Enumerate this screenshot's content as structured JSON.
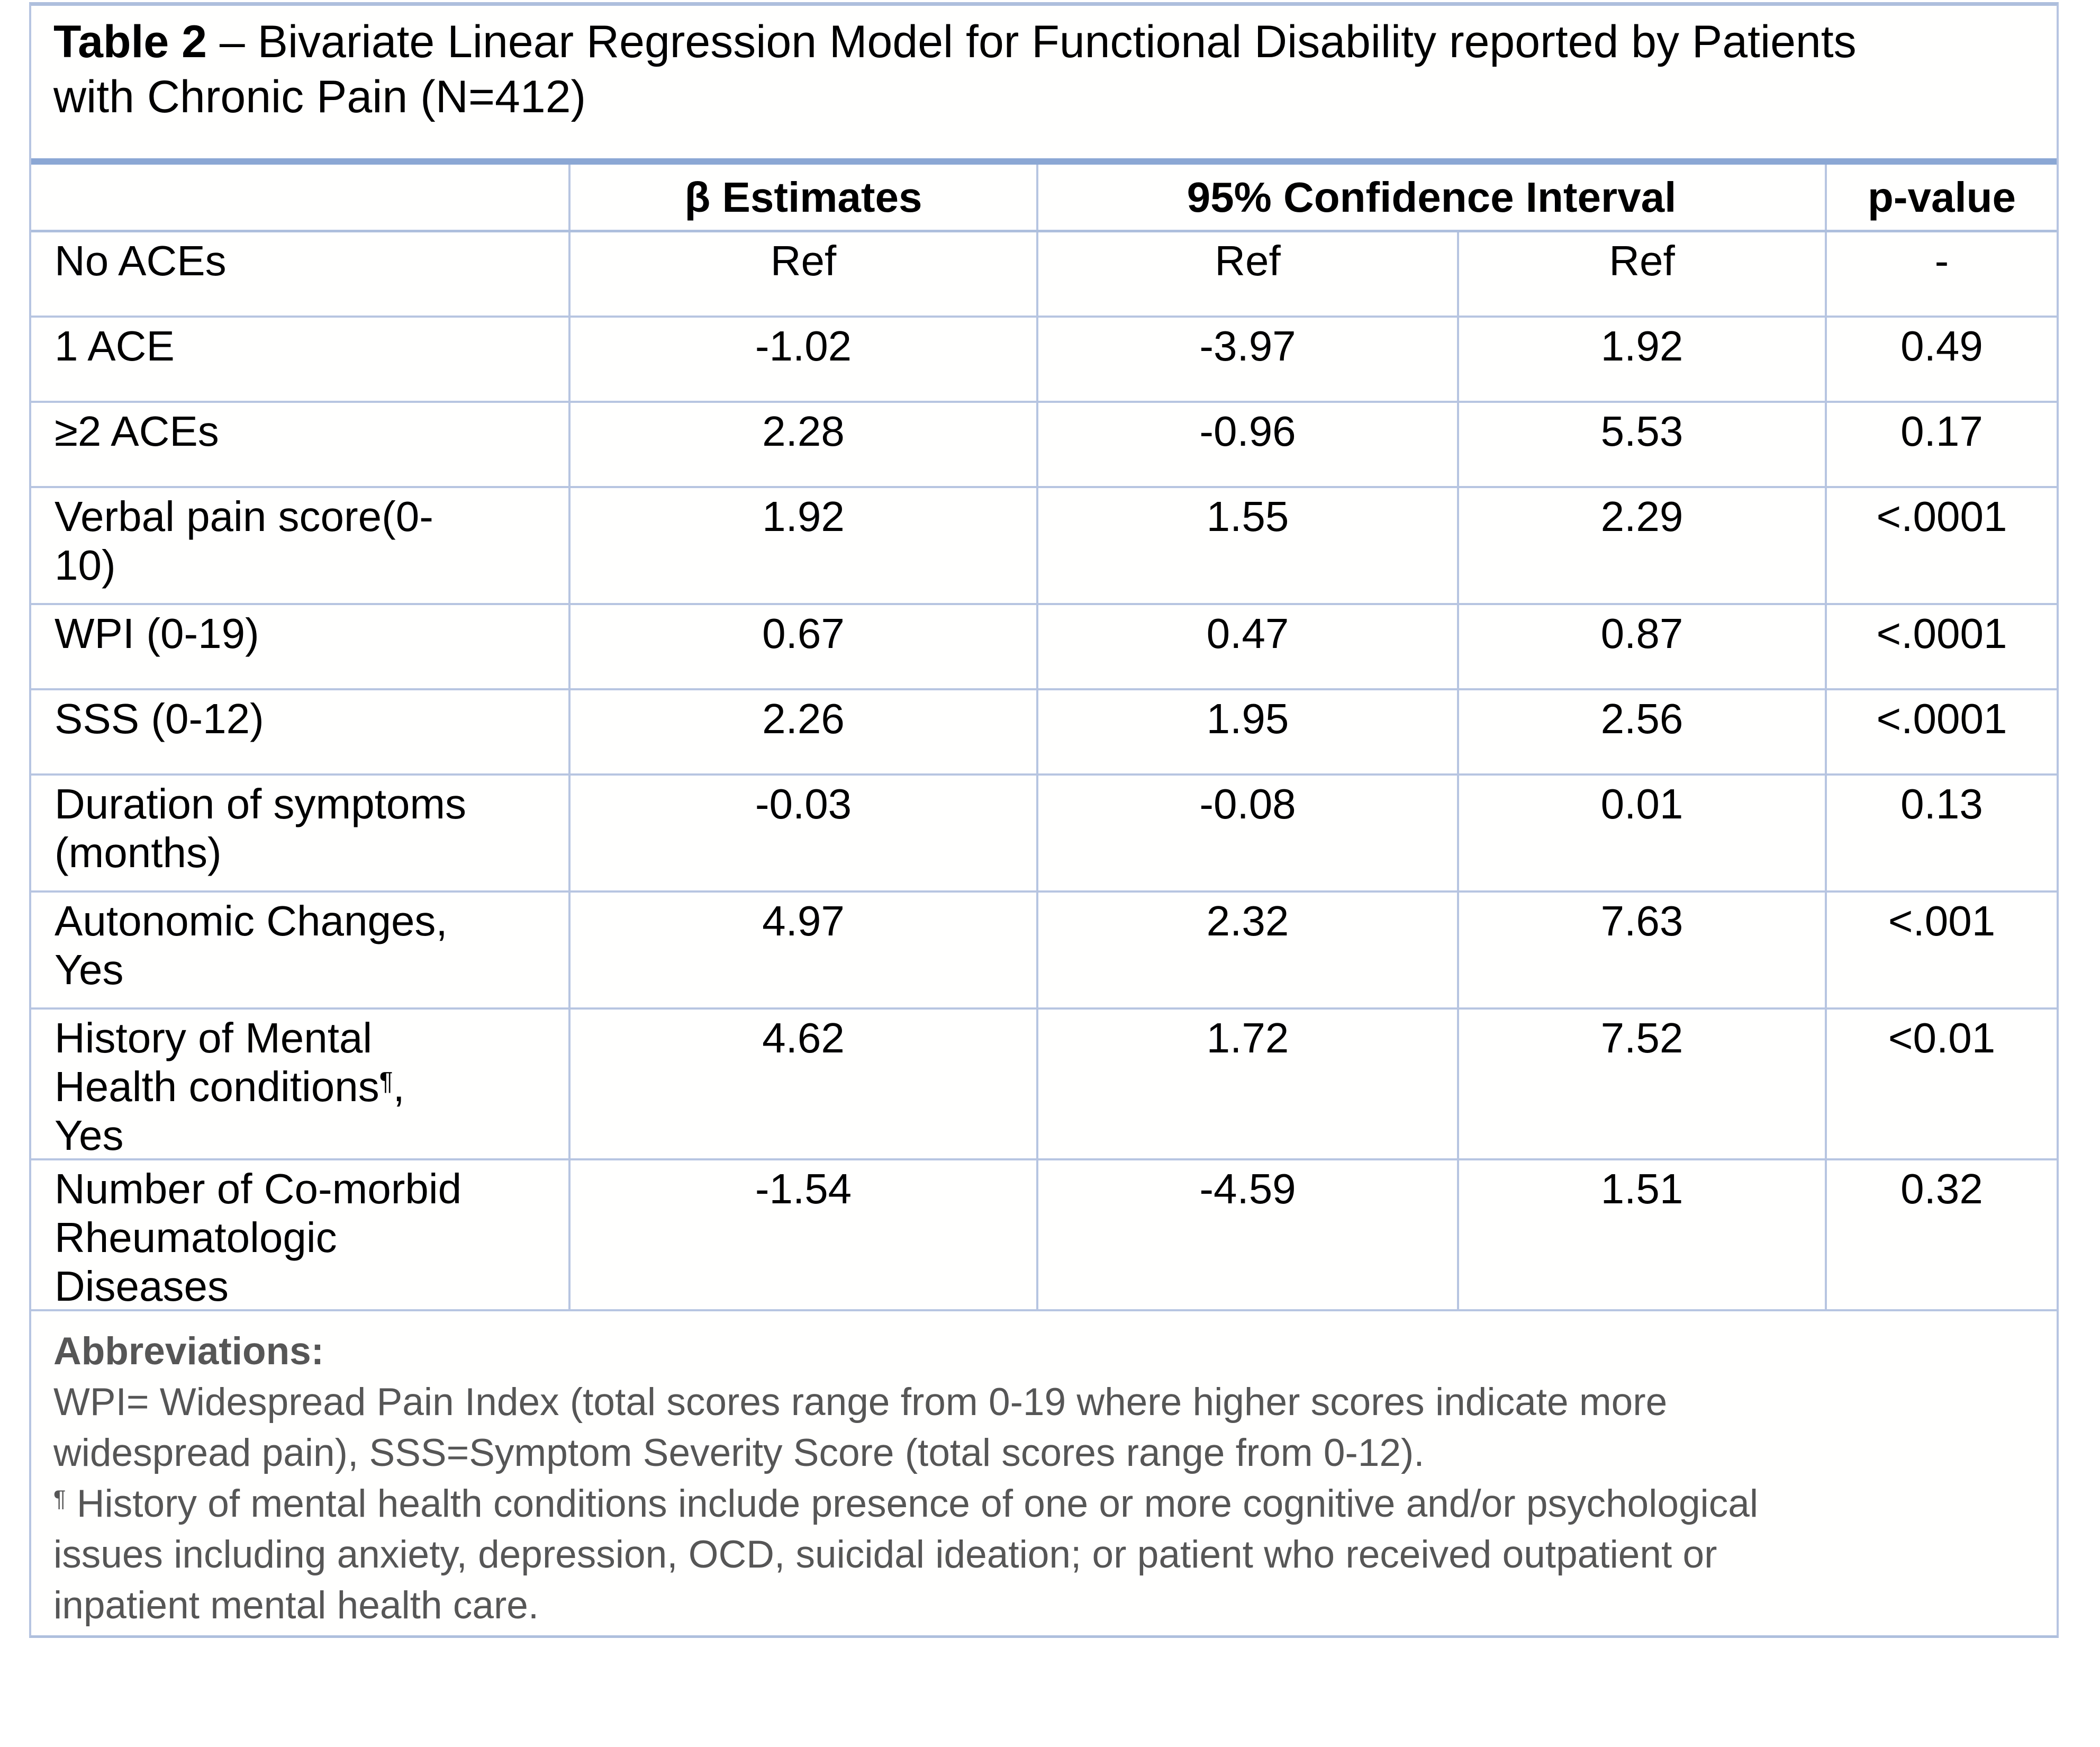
{
  "title": {
    "label": "Table 2",
    "rest": " – Bivariate Linear Regression Model for Functional Disability reported by Patients\nwith Chronic Pain (N=412)"
  },
  "table": {
    "headers": {
      "beta": "β Estimates",
      "ci": "95% Confidence Interval",
      "p": "p-value"
    },
    "rows": [
      {
        "label": "No ACEs",
        "beta": "Ref",
        "ci_low": "Ref",
        "ci_high": "Ref",
        "p": "-"
      },
      {
        "label": "1 ACE",
        "beta": "-1.02",
        "ci_low": "-3.97",
        "ci_high": "1.92",
        "p": "0.49"
      },
      {
        "label": "≥2 ACEs",
        "beta": "2.28",
        "ci_low": "-0.96",
        "ci_high": "5.53",
        "p": "0.17"
      },
      {
        "label": "Verbal pain score(0-\n10)",
        "beta": "1.92",
        "ci_low": "1.55",
        "ci_high": "2.29",
        "p": "<.0001"
      },
      {
        "label": "WPI (0-19)",
        "beta": "0.67",
        "ci_low": "0.47",
        "ci_high": "0.87",
        "p": "<.0001"
      },
      {
        "label": "SSS (0-12)",
        "beta": "2.26",
        "ci_low": "1.95",
        "ci_high": "2.56",
        "p": "<.0001"
      },
      {
        "label": "Duration of symptoms\n(months)",
        "beta": "-0.03",
        "ci_low": "-0.08",
        "ci_high": "0.01",
        "p": "0.13"
      },
      {
        "label": "Autonomic Changes,\nYes",
        "beta": "4.97",
        "ci_low": "2.32",
        "ci_high": "7.63",
        "p": "<.001"
      },
      {
        "label": "History of Mental\nHealth conditions¶,\nYes",
        "beta": "4.62",
        "ci_low": "1.72",
        "ci_high": "7.52",
        "p": "<0.01"
      },
      {
        "label": "Number of Co-morbid\nRheumatologic\nDiseases",
        "beta": "-1.54",
        "ci_low": "-4.59",
        "ci_high": "1.51",
        "p": "0.32"
      }
    ]
  },
  "footnotes": {
    "heading": "Abbreviations:",
    "abbreviations": "WPI= Widespread Pain Index (total scores range from 0-19 where higher scores indicate more\nwidespread pain), SSS=Symptom Severity Score (total scores range from 0-12).",
    "pilcrow_marker": "¶",
    "pilcrow_text": " History of mental health conditions include presence of one or more cognitive and/or psychological\nissues including anxiety, depression, OCD, suicidal ideation; or patient who received outpatient or\ninpatient mental health care."
  },
  "colors": {
    "border-thin": "#b7c5e1",
    "border-mid": "#aebfdd",
    "border-heavy": "#8ba7d4",
    "footnote-color": "#565656",
    "text-color": "#000000"
  }
}
